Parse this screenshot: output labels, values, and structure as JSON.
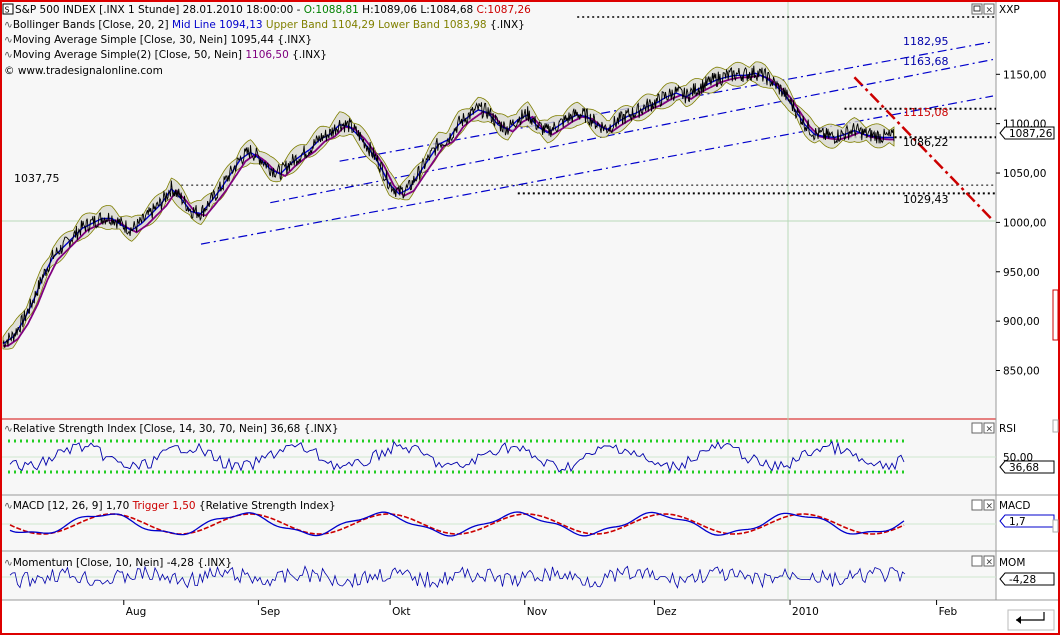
{
  "header": {
    "title": "S&P 500 INDEX [.INX  1 Stunde] 28.01.2010 18:00:00 -",
    "o": "O:1088,81",
    "h": "H:1089,06",
    "l": "L:1084,68",
    "c": "C:1087,26"
  },
  "legend": {
    "bb_prefix": "Bollinger Bands [Close, 20, 2]",
    "bb_mid": "Mid Line 1094,13",
    "bb_upper": "Upper Band 1104,29",
    "bb_lower": "Lower Band 1083,98",
    "bb_suffix": "{.INX}",
    "ma30": "Moving Average Simple [Close, 30, Nein] 1095,44 {.INX}",
    "ma50_prefix": "Moving Average Simple(2) [Close, 50, Nein]",
    "ma50_value": "1106,50",
    "ma50_suffix": "{.INX}",
    "copyright": "© www.tradesignalonline.com"
  },
  "right_axis": {
    "main_label": "XXP",
    "rsi_label": "RSI",
    "macd_label": "MACD",
    "mom_label": "MOM",
    "price_badge": "1087,26",
    "rsi_badge": "36,68",
    "rsi_tick": "50,00",
    "macd_badge": "1,7",
    "mom_badge": "-4,28"
  },
  "annotations": {
    "a1182": "1182,95",
    "a1163": "1163,68",
    "a1115": "1115,08",
    "a1086": "1086,22",
    "a1029": "1029,43",
    "a1037": "1037,75"
  },
  "panels": {
    "rsi_title": "Relative Strength Index [Close, 14, 30, 70, Nein] 36,68 {.INX}",
    "macd_title": "MACD [12, 26, 9] 1,70",
    "macd_trigger": "Trigger 1,50",
    "macd_suffix": "{Relative Strength Index}",
    "mom_title": "Momentum [Close, 10, Nein] -4,28 {.INX}"
  },
  "colors": {
    "price": "#000000",
    "bb_mid": "#0000cc",
    "bb_band": "#808000",
    "ma50": "#800080",
    "channel": "#0000cc",
    "rsi_bounds": "#22cc22",
    "trend_red": "#cc0000",
    "frame_red": "#dd0000"
  },
  "chart_data": {
    "type": "line",
    "title": "S&P 500 INDEX [.INX  1 Stunde]",
    "x_ticks": [
      "Aug",
      "Sep",
      "Okt",
      "Nov",
      "Dez",
      "2010",
      "Feb"
    ],
    "ylim": [
      810,
      1205
    ],
    "y_ticks": [
      "850,00",
      "900,00",
      "950,00",
      "1000,00",
      "1050,00",
      "1100,00",
      "1150,00"
    ],
    "y_tick_values": [
      850,
      900,
      950,
      1000,
      1050,
      1100,
      1150
    ],
    "x_range": [
      0,
      100
    ],
    "series": [
      {
        "name": "S&P 500 INDEX",
        "x": [
          0,
          1,
          2,
          3,
          4,
          5,
          6,
          7,
          8,
          9,
          10,
          11,
          12,
          13,
          14,
          15,
          16,
          17,
          18,
          19,
          20,
          21,
          22,
          23,
          24,
          25,
          26,
          27,
          28,
          29,
          30,
          31,
          32,
          33,
          34,
          35,
          36,
          37,
          38,
          39,
          40,
          41,
          42,
          43,
          44,
          45,
          46,
          47,
          48,
          49,
          50,
          51,
          52,
          53,
          54,
          55,
          56,
          57,
          58,
          59,
          60,
          61,
          62,
          63,
          64,
          65,
          66,
          67,
          68,
          69,
          70,
          71,
          72,
          73,
          74,
          75,
          76,
          77,
          78,
          79,
          80,
          81,
          82,
          83,
          84,
          85,
          86,
          87,
          88,
          89,
          90
        ],
        "values": [
          878,
          885,
          900,
          920,
          945,
          965,
          975,
          985,
          995,
          1000,
          1005,
          1005,
          998,
          993,
          1000,
          1010,
          1020,
          1035,
          1025,
          1012,
          1010,
          1022,
          1035,
          1050,
          1065,
          1072,
          1065,
          1055,
          1050,
          1060,
          1068,
          1075,
          1085,
          1090,
          1100,
          1098,
          1088,
          1075,
          1060,
          1040,
          1030,
          1035,
          1050,
          1065,
          1080,
          1085,
          1100,
          1108,
          1115,
          1112,
          1100,
          1095,
          1105,
          1110,
          1098,
          1092,
          1098,
          1105,
          1110,
          1108,
          1100,
          1095,
          1102,
          1108,
          1112,
          1118,
          1122,
          1128,
          1132,
          1128,
          1135,
          1140,
          1145,
          1148,
          1150,
          1150,
          1152,
          1148,
          1140,
          1130,
          1115,
          1100,
          1090,
          1088,
          1087,
          1090,
          1094,
          1090,
          1088,
          1087,
          1087
        ]
      }
    ],
    "trend_lines": [
      {
        "type": "channel_upper",
        "x": [
          34,
          100
        ],
        "values": [
          1062,
          1183
        ]
      },
      {
        "type": "channel_lower",
        "x": [
          20,
          100
        ],
        "values": [
          978,
          1128
        ]
      },
      {
        "type": "red_downtrend",
        "x": [
          86,
          100
        ],
        "values": [
          1147,
          1002
        ]
      }
    ],
    "horizontal_levels": [
      1115.08,
      1086.22,
      1037.75,
      1029.43,
      1198
    ],
    "labels": [
      "Aug",
      "Sep",
      "Okt",
      "Nov",
      "Dez",
      "2010",
      "Feb"
    ]
  }
}
